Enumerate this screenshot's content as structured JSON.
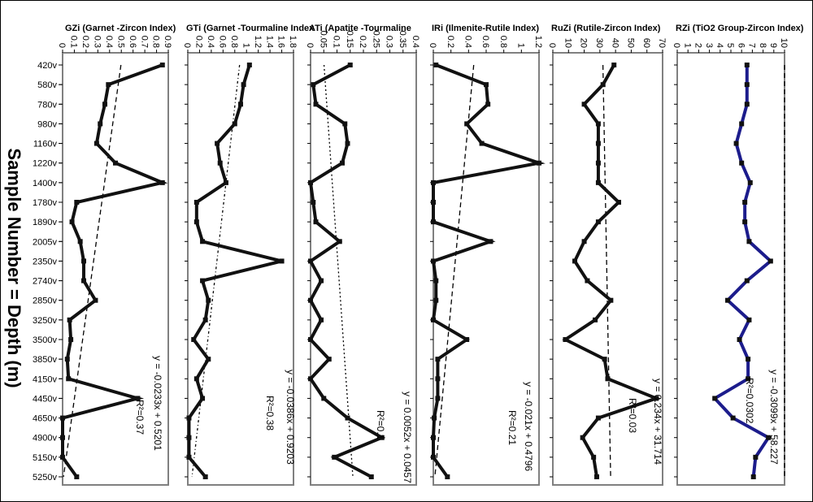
{
  "figure": {
    "ylabel": "Sample Number = Depth (m)",
    "samples": [
      "420v",
      "580v",
      "780v",
      "980v",
      "1160v",
      "1220v",
      "1400v",
      "1780v",
      "1890v",
      "2005v",
      "2350v",
      "2740v",
      "2850v",
      "3250v",
      "3500v",
      "3850v",
      "4150v",
      "4450v",
      "4650v",
      "4900v",
      "5150v",
      "5250v"
    ]
  },
  "colors": {
    "frame": "#808080",
    "series_default": "#111111",
    "series_rzi": "#1c1c8c",
    "marker_rzi": "#111111"
  },
  "chart_data": [
    {
      "type": "line",
      "title": "GZi (Garnet -Zircon Index)",
      "xlim": [
        0,
        0.9
      ],
      "xticks": [
        0,
        0.1,
        0.2,
        0.3,
        0.4,
        0.5,
        0.6,
        0.7,
        0.8,
        0.9
      ],
      "values": [
        0.85,
        0.39,
        0.36,
        0.32,
        0.29,
        0.45,
        0.85,
        0.12,
        0.08,
        0.15,
        0.18,
        0.18,
        0.28,
        0.06,
        0.07,
        0.04,
        0.05,
        0.64,
        0.0,
        0.0,
        0.0,
        0.12
      ],
      "trend": {
        "equation": "y = -0.0233x + 0.5201",
        "r2": "R²=0.37",
        "slope": -0.0233,
        "intercept": 0.5201
      }
    },
    {
      "type": "line",
      "title": "GTi (Garnet -Tourmaline Index",
      "xlim": [
        0,
        1.8
      ],
      "xticks": [
        0,
        0.2,
        0.4,
        0.6,
        0.8,
        1,
        1.2,
        1.4,
        1.6,
        1.8
      ],
      "values": [
        1.05,
        0.95,
        0.9,
        0.8,
        0.5,
        0.55,
        0.65,
        0.15,
        0.15,
        0.25,
        1.6,
        0.25,
        0.35,
        0.3,
        0.1,
        0.35,
        0.15,
        0.25,
        0.02,
        0.02,
        0.02,
        0.3
      ],
      "trend": {
        "equation": "y = -0.0386x + 0.9203",
        "r2": "R²=0.38",
        "slope": -0.0386,
        "intercept": 0.9203
      }
    },
    {
      "type": "line",
      "title": "ATi (Apatite -Tourmaline",
      "xlim": [
        0,
        0.4
      ],
      "xticks": [
        0,
        0.05,
        0.1,
        0.15,
        0.2,
        0.25,
        0.3,
        0.35,
        0.4
      ],
      "values": [
        0.15,
        0.01,
        0.02,
        0.13,
        0.14,
        0.12,
        0.0,
        0.01,
        0.02,
        0.11,
        0.0,
        0.04,
        0.0,
        0.04,
        0.0,
        0.07,
        0.0,
        0.05,
        0.14,
        0.27,
        0.09,
        0.23
      ],
      "trend": {
        "equation": "y = 0.0052x + 0.0457",
        "r2": "R²=0.1",
        "slope": 0.0052,
        "intercept": 0.0457
      }
    },
    {
      "type": "line",
      "title": "IRi (Ilmenite-Rutile Index)",
      "xlim": [
        0,
        1.2
      ],
      "xticks": [
        0,
        0.2,
        0.4,
        0.6,
        0.8,
        1,
        1.2
      ],
      "values": [
        0.03,
        0.6,
        0.62,
        0.38,
        0.55,
        1.2,
        0.0,
        0.0,
        0.0,
        0.65,
        0.0,
        0.03,
        0.03,
        0.0,
        0.38,
        0.05,
        0.05,
        0.05,
        0.01,
        0.0,
        0.0,
        0.16
      ],
      "trend": {
        "equation": "y = -0.021x + 0.4796",
        "r2": "R²=0.21",
        "slope": -0.021,
        "intercept": 0.4796
      }
    },
    {
      "type": "line",
      "title": "RuZi (Rutile-Zircon Index)",
      "xlim": [
        0,
        70
      ],
      "xticks": [
        0,
        10,
        20,
        30,
        40,
        50,
        60,
        70
      ],
      "values": [
        39,
        32,
        20,
        29,
        29,
        29,
        29,
        42,
        29,
        20,
        14,
        22,
        37,
        27,
        8,
        33,
        35,
        66,
        29,
        19,
        26,
        28
      ],
      "trend": {
        "equation": "y = 0.234x + 31.714",
        "r2": "R²=0.03",
        "slope": 0.234,
        "intercept": 31.714
      }
    },
    {
      "type": "line",
      "title": "RZi (TiO2 Group-Zircon Index)",
      "xlim": [
        0,
        10
      ],
      "xticks": [
        0,
        1,
        2,
        3,
        4,
        5,
        6,
        7,
        8,
        9,
        10
      ],
      "values": [
        6.5,
        6.5,
        6.5,
        6.0,
        5.5,
        6.0,
        6.8,
        6.3,
        6.3,
        6.7,
        8.7,
        6.5,
        4.7,
        6.7,
        5.8,
        6.6,
        6.6,
        3.5,
        5.2,
        8.5,
        7.3,
        7.1
      ],
      "trend": {
        "equation": "y = -0.3099x + 58.227",
        "r2": "R²=0.0302",
        "slope": -0.3099,
        "intercept": 58.227
      }
    }
  ]
}
